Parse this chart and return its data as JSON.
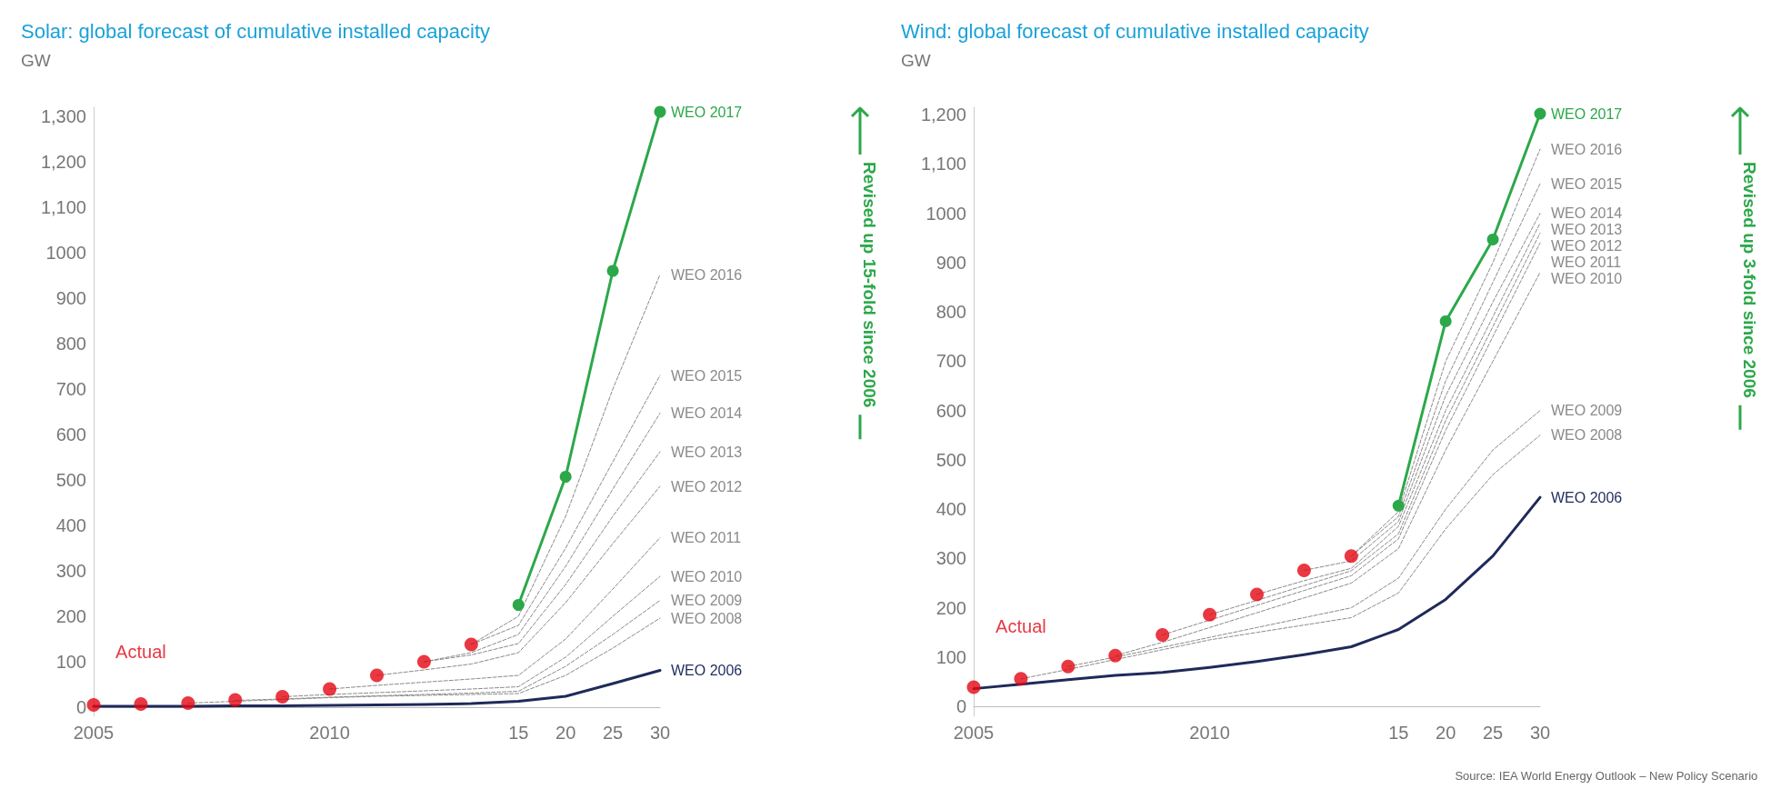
{
  "chart_data": [
    {
      "type": "line",
      "title": "Solar: global forecast of cumulative installed capacity",
      "ylabel": "GW",
      "categories": [
        "2005",
        null,
        null,
        null,
        null,
        "2010",
        null,
        null,
        null,
        "15",
        "20",
        "25",
        "30"
      ],
      "ylim": [
        -20,
        1320
      ],
      "yticks": [
        0,
        100,
        200,
        300,
        400,
        500,
        600,
        700,
        800,
        900,
        {
          "value": 1000,
          "label": "1000"
        },
        {
          "value": 1100,
          "label": "1,100"
        },
        {
          "value": 1200,
          "label": "1,200"
        },
        {
          "value": 1300,
          "label": "1,300"
        }
      ],
      "grid": false,
      "legend": false,
      "annotations": [
        "Revised up 15-fold since 2006"
      ],
      "series": [
        {
          "name": "WEO 2008",
          "color": "#8a8a8a",
          "line_style": "dashed",
          "marker": "none",
          "values": [
            null,
            null,
            9,
            13,
            17,
            21,
            24,
            26,
            28,
            30,
            70,
            130,
            196
          ]
        },
        {
          "name": "WEO 2009",
          "color": "#8a8a8a",
          "line_style": "dashed",
          "marker": "none",
          "values": [
            null,
            null,
            null,
            15,
            18,
            22,
            25,
            28,
            31,
            35,
            90,
            160,
            235
          ]
        },
        {
          "name": "WEO 2010",
          "color": "#8a8a8a",
          "line_style": "dashed",
          "marker": "none",
          "values": [
            null,
            null,
            null,
            null,
            23,
            28,
            32,
            36,
            40,
            45,
            110,
            200,
            288
          ]
        },
        {
          "name": "WEO 2011",
          "color": "#8a8a8a",
          "line_style": "dashed",
          "marker": "none",
          "values": [
            null,
            null,
            null,
            null,
            null,
            40,
            48,
            55,
            62,
            70,
            150,
            260,
            373
          ]
        },
        {
          "name": "WEO 2012",
          "color": "#8a8a8a",
          "line_style": "dashed",
          "marker": "none",
          "values": [
            null,
            null,
            null,
            null,
            null,
            null,
            70,
            82,
            95,
            120,
            230,
            360,
            486
          ]
        },
        {
          "name": "WEO 2013",
          "color": "#8a8a8a",
          "line_style": "dashed",
          "marker": "none",
          "values": [
            null,
            null,
            null,
            null,
            null,
            null,
            null,
            100,
            115,
            140,
            270,
            420,
            562
          ]
        },
        {
          "name": "WEO 2014",
          "color": "#8a8a8a",
          "line_style": "dashed",
          "marker": "none",
          "values": [
            null,
            null,
            null,
            null,
            null,
            null,
            null,
            100,
            120,
            160,
            310,
            480,
            647
          ]
        },
        {
          "name": "WEO 2015",
          "color": "#8a8a8a",
          "line_style": "dashed",
          "marker": "none",
          "values": [
            null,
            null,
            null,
            null,
            null,
            null,
            null,
            null,
            138,
            180,
            350,
            540,
            730
          ]
        },
        {
          "name": "WEO 2016",
          "color": "#8a8a8a",
          "line_style": "dashed",
          "marker": "none",
          "values": [
            null,
            null,
            null,
            null,
            null,
            null,
            null,
            null,
            138,
            200,
            420,
            700,
            952
          ]
        },
        {
          "name": "WEO 2006",
          "color": "#1f2a5a",
          "line_style": "solid",
          "marker": "none",
          "values": [
            2,
            2,
            2,
            3,
            3,
            4,
            5,
            6,
            8,
            13,
            24,
            52,
            81
          ]
        },
        {
          "name": "WEO 2017",
          "color": "#2ca84a",
          "line_style": "solid",
          "marker": "circle",
          "values": [
            null,
            null,
            null,
            null,
            null,
            null,
            null,
            null,
            null,
            225,
            507,
            960,
            1310
          ]
        },
        {
          "name": "Actual",
          "type": "scatter",
          "color": "#e30613",
          "marker": "circle",
          "values": [
            5,
            7,
            9,
            16,
            23,
            40,
            70,
            100,
            138,
            null,
            null,
            null,
            null
          ]
        }
      ]
    },
    {
      "type": "line",
      "title": "Wind: global forecast of cumulative installed capacity",
      "ylabel": "GW",
      "categories": [
        "2005",
        null,
        null,
        null,
        null,
        "2010",
        null,
        null,
        null,
        "15",
        "20",
        "25",
        "30"
      ],
      "ylim": [
        -20,
        1215
      ],
      "yticks": [
        0,
        100,
        200,
        300,
        400,
        500,
        600,
        700,
        800,
        900,
        {
          "value": 1000,
          "label": "1000"
        },
        {
          "value": 1100,
          "label": "1,100"
        },
        {
          "value": 1200,
          "label": "1,200"
        }
      ],
      "grid": false,
      "legend": false,
      "annotations": [
        "Revised up 3-fold since 2006",
        "Source: IEA World Energy Outlook – New Policy Scenario"
      ],
      "series": [
        {
          "name": "WEO 2008",
          "color": "#8a8a8a",
          "line_style": "dashed",
          "marker": "none",
          "values": [
            null,
            56,
            75,
            95,
            115,
            135,
            150,
            165,
            180,
            230,
            360,
            470,
            550
          ]
        },
        {
          "name": "WEO 2009",
          "color": "#8a8a8a",
          "line_style": "dashed",
          "marker": "none",
          "values": [
            null,
            null,
            81,
            100,
            120,
            140,
            160,
            180,
            200,
            260,
            400,
            520,
            600
          ]
        },
        {
          "name": "WEO 2010",
          "color": "#8a8a8a",
          "line_style": "dashed",
          "marker": "none",
          "values": [
            null,
            null,
            null,
            103,
            130,
            160,
            190,
            220,
            250,
            320,
            520,
            700,
            880
          ]
        },
        {
          "name": "WEO 2011",
          "color": "#8a8a8a",
          "line_style": "dashed",
          "marker": "none",
          "values": [
            null,
            null,
            null,
            null,
            145,
            175,
            205,
            235,
            265,
            340,
            560,
            750,
            940
          ]
        },
        {
          "name": "WEO 2012",
          "color": "#8a8a8a",
          "line_style": "dashed",
          "marker": "none",
          "values": [
            null,
            null,
            null,
            null,
            null,
            186,
            215,
            245,
            275,
            350,
            580,
            770,
            960
          ]
        },
        {
          "name": "WEO 2013",
          "color": "#8a8a8a",
          "line_style": "dashed",
          "marker": "none",
          "values": [
            null,
            null,
            null,
            null,
            null,
            null,
            227,
            255,
            280,
            365,
            600,
            790,
            980
          ]
        },
        {
          "name": "WEO 2014",
          "color": "#8a8a8a",
          "line_style": "dashed",
          "marker": "none",
          "values": [
            null,
            null,
            null,
            null,
            null,
            null,
            null,
            276,
            295,
            375,
            630,
            820,
            1000
          ]
        },
        {
          "name": "WEO 2015",
          "color": "#8a8a8a",
          "line_style": "dashed",
          "marker": "none",
          "values": [
            null,
            null,
            null,
            null,
            null,
            null,
            null,
            null,
            305,
            385,
            660,
            860,
            1060
          ]
        },
        {
          "name": "WEO 2016",
          "color": "#8a8a8a",
          "line_style": "dashed",
          "marker": "none",
          "values": [
            null,
            null,
            null,
            null,
            null,
            null,
            null,
            null,
            305,
            395,
            700,
            900,
            1130
          ]
        },
        {
          "name": "WEO 2006",
          "color": "#1f2a5a",
          "line_style": "solid",
          "marker": "none",
          "values": [
            36,
            45,
            54,
            63,
            69,
            79,
            91,
            105,
            121,
            156,
            217,
            305,
            424
          ]
        },
        {
          "name": "WEO 2017",
          "color": "#2ca84a",
          "line_style": "solid",
          "marker": "circle",
          "values": [
            null,
            null,
            null,
            null,
            null,
            null,
            null,
            null,
            null,
            407,
            781,
            947,
            1202
          ]
        },
        {
          "name": "Actual",
          "type": "scatter",
          "color": "#e30613",
          "marker": "circle",
          "values": [
            39,
            56,
            81,
            103,
            145,
            186,
            227,
            276,
            305,
            null,
            null,
            null,
            null
          ]
        }
      ]
    }
  ]
}
